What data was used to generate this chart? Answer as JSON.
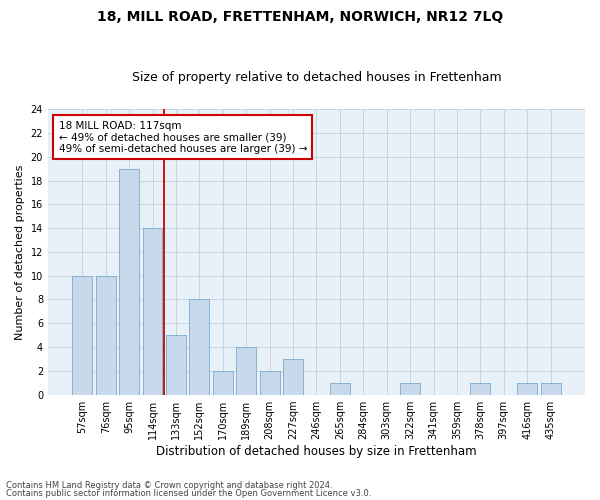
{
  "title": "18, MILL ROAD, FRETTENHAM, NORWICH, NR12 7LQ",
  "subtitle": "Size of property relative to detached houses in Frettenham",
  "xlabel": "Distribution of detached houses by size in Frettenham",
  "ylabel": "Number of detached properties",
  "categories": [
    "57sqm",
    "76sqm",
    "95sqm",
    "114sqm",
    "133sqm",
    "152sqm",
    "170sqm",
    "189sqm",
    "208sqm",
    "227sqm",
    "246sqm",
    "265sqm",
    "284sqm",
    "303sqm",
    "322sqm",
    "341sqm",
    "359sqm",
    "378sqm",
    "397sqm",
    "416sqm",
    "435sqm"
  ],
  "values": [
    10,
    10,
    19,
    14,
    5,
    8,
    2,
    4,
    2,
    3,
    0,
    1,
    0,
    0,
    1,
    0,
    0,
    1,
    0,
    1,
    1
  ],
  "bar_color": "#c9d9ec",
  "bar_edgecolor": "#7aaacf",
  "grid_color": "#c8d4e0",
  "bg_color": "#e8f0f8",
  "annotation_text": "18 MILL ROAD: 117sqm\n← 49% of detached houses are smaller (39)\n49% of semi-detached houses are larger (39) →",
  "annotation_box_color": "#ffffff",
  "annotation_box_edge": "#cc0000",
  "vline_color": "#cc0000",
  "vline_x": 3.5,
  "ylim": [
    0,
    24
  ],
  "yticks": [
    0,
    2,
    4,
    6,
    8,
    10,
    12,
    14,
    16,
    18,
    20,
    22,
    24
  ],
  "footer1": "Contains HM Land Registry data © Crown copyright and database right 2024.",
  "footer2": "Contains public sector information licensed under the Open Government Licence v3.0.",
  "title_fontsize": 10,
  "subtitle_fontsize": 9,
  "tick_fontsize": 7,
  "ylabel_fontsize": 8,
  "xlabel_fontsize": 8.5,
  "footer_fontsize": 6
}
